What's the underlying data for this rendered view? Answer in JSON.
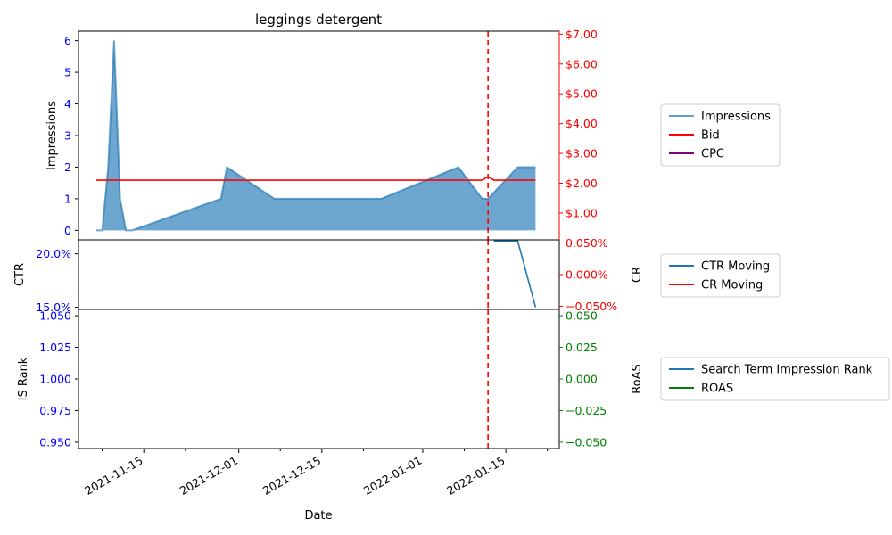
{
  "chart_data": {
    "type": "line",
    "title": "leggings detergent",
    "xlabel": "Date",
    "x_ticks": [
      "2021-11-15",
      "2021-12-01",
      "2021-12-15",
      "2022-01-01",
      "2022-01-15"
    ],
    "xlim": [
      "2021-11-04",
      "2022-01-24"
    ],
    "event_line": {
      "x": "2022-01-12",
      "color": "#ff0000",
      "style": "dashed"
    },
    "panels": [
      {
        "id": "impressions",
        "left_axis": {
          "label": "Impressions",
          "color": "#0000ff",
          "ylim": [
            -0.3,
            6.3
          ],
          "ticks": [
            0,
            1,
            2,
            3,
            4,
            5,
            6
          ],
          "tick_labels": [
            "0",
            "1",
            "2",
            "3",
            "4",
            "5",
            "6"
          ]
        },
        "right_axis": {
          "label": "",
          "color": "#ff0000",
          "ylim": [
            0.1,
            7.1
          ],
          "ticks": [
            1,
            2,
            3,
            4,
            5,
            6,
            7
          ],
          "tick_labels": [
            "$1.00",
            "$2.00",
            "$3.00",
            "$4.00",
            "$5.00",
            "$6.00",
            "$7.00"
          ]
        },
        "series": [
          {
            "name": "Impressions",
            "kind": "area",
            "axis": "left",
            "color": "#1f77b4",
            "x": [
              "2021-11-07",
              "2021-11-08",
              "2021-11-09",
              "2021-11-10",
              "2021-11-11",
              "2021-11-12",
              "2021-11-13",
              "2021-11-28",
              "2021-11-29",
              "2021-12-07",
              "2021-12-25",
              "2022-01-07",
              "2022-01-11",
              "2022-01-12",
              "2022-01-17",
              "2022-01-20"
            ],
            "y": [
              0,
              0,
              2,
              6,
              1,
              0,
              0,
              1,
              2,
              1,
              1,
              2,
              1,
              1,
              2,
              2
            ]
          },
          {
            "name": "Bid",
            "kind": "line",
            "axis": "right",
            "color": "#ff0000",
            "x": [
              "2021-11-07",
              "2022-01-11",
              "2022-01-12",
              "2022-01-13",
              "2022-01-20"
            ],
            "y": [
              2.1,
              2.1,
              2.22,
              2.1,
              2.1
            ]
          },
          {
            "name": "CPC",
            "kind": "line",
            "axis": "right",
            "color": "#800080",
            "x": [],
            "y": []
          }
        ]
      },
      {
        "id": "ctr",
        "left_axis": {
          "label": "CTR",
          "color": "#0000ff",
          "ylim": [
            14.8,
            21.3
          ],
          "ticks": [
            15,
            20
          ],
          "tick_labels": [
            "15.0%",
            "20.0%"
          ]
        },
        "right_axis": {
          "label": "CR",
          "color": "#ff0000",
          "ylim": [
            -0.055,
            0.055
          ],
          "ticks": [
            -0.05,
            0,
            0.05
          ],
          "tick_labels": [
            "−0.050%",
            "0.000%",
            "0.050%"
          ]
        },
        "series": [
          {
            "name": "CTR Moving",
            "kind": "line",
            "axis": "left",
            "color": "#1f77b4",
            "x": [
              "2022-01-13",
              "2022-01-17",
              "2022-01-20"
            ],
            "y": [
              21.2,
              21.2,
              15.0
            ]
          },
          {
            "name": "CR Moving",
            "kind": "line",
            "axis": "right",
            "color": "#ff0000",
            "x": [],
            "y": []
          }
        ]
      },
      {
        "id": "rank",
        "left_axis": {
          "label": "IS Rank",
          "color": "#0000ff",
          "ylim": [
            0.945,
            1.055
          ],
          "ticks": [
            0.95,
            0.975,
            1.0,
            1.025,
            1.05
          ],
          "tick_labels": [
            "0.950",
            "0.975",
            "1.000",
            "1.025",
            "1.050"
          ]
        },
        "right_axis": {
          "label": "RoAS",
          "color": "#008000",
          "ylim": [
            -0.055,
            0.055
          ],
          "ticks": [
            -0.05,
            -0.025,
            0,
            0.025,
            0.05
          ],
          "tick_labels": [
            "−0.050",
            "−0.025",
            "0.000",
            "0.025",
            "0.050"
          ]
        },
        "series": [
          {
            "name": "Search Term Impression Rank",
            "kind": "line",
            "axis": "left",
            "color": "#1f77b4",
            "x": [],
            "y": []
          },
          {
            "name": "ROAS",
            "kind": "line",
            "axis": "right",
            "color": "#008000",
            "x": [],
            "y": []
          }
        ]
      }
    ]
  }
}
